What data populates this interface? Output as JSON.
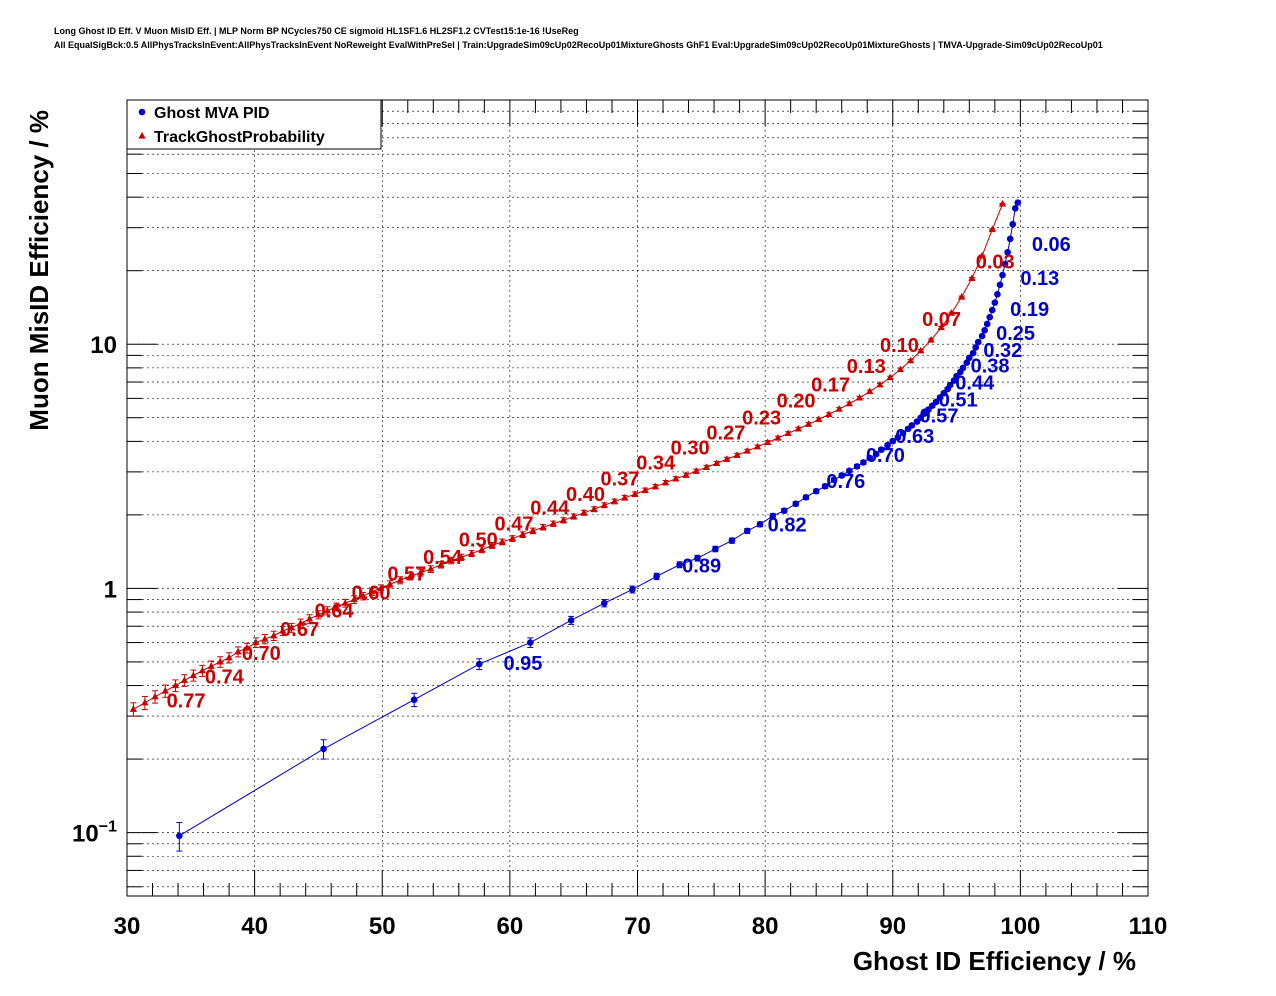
{
  "header": {
    "title_line1": "Long Ghost ID Eff. V Muon MisID Eff. | MLP Norm BP NCycles750 CE sigmoid HL1SF1.6 HL2SF1.2 CVTest15:1e-16 !UseReg",
    "title_line2": "All EqualSigBck:0.5 AllPhysTracksInEvent:AllPhysTracksInEvent NoReweight EvalWithPreSel | Train:UpgradeSim09cUp02RecoUp01MixtureGhosts GhF1 Eval:UpgradeSim09cUp02RecoUp01MixtureGhosts | TMVA-Upgrade-Sim09cUp02RecoUp01"
  },
  "colors": {
    "mva": "#0000cc",
    "tgp": "#cc0000",
    "grid": "#000000"
  },
  "chart_data": {
    "type": "scatter",
    "xlabel": "Ghost ID Efficiency / %",
    "ylabel": "Muon MisID Efficiency / %",
    "xlim": [
      30,
      110
    ],
    "ylim": [
      0.055,
      100
    ],
    "yscale": "log",
    "grid": true,
    "legend_position": "top-left",
    "x_ticks": [
      {
        "value": 30,
        "label": "30"
      },
      {
        "value": 40,
        "label": "40"
      },
      {
        "value": 50,
        "label": "50"
      },
      {
        "value": 60,
        "label": "60"
      },
      {
        "value": 70,
        "label": "70"
      },
      {
        "value": 80,
        "label": "80"
      },
      {
        "value": 90,
        "label": "90"
      },
      {
        "value": 100,
        "label": "100"
      },
      {
        "value": 110,
        "label": "110"
      }
    ],
    "y_ticks": [
      {
        "value": 0.1,
        "base": "10",
        "exp": "−1"
      },
      {
        "value": 1,
        "base": "1",
        "exp": ""
      },
      {
        "value": 10,
        "base": "10",
        "exp": ""
      }
    ],
    "series": [
      {
        "name": "Ghost MVA PID",
        "marker": "circle",
        "color": "#0000cc",
        "x": [
          34.1,
          45.4,
          52.5,
          57.6,
          61.6,
          64.8,
          67.4,
          69.6,
          71.5,
          73.3,
          74.7,
          76.1,
          77.4,
          78.6,
          79.6,
          80.6,
          81.5,
          82.4,
          83.2,
          84.0,
          84.7,
          85.4,
          86.0,
          86.6,
          87.2,
          87.7,
          88.2,
          88.7,
          89.1,
          89.6,
          90.0,
          90.4,
          90.8,
          91.2,
          91.5,
          91.9,
          92.2,
          92.5,
          92.8,
          93.1,
          93.4,
          93.7,
          94.0,
          94.3,
          94.5,
          94.8,
          95.0,
          95.3,
          95.5,
          95.8,
          96.0,
          96.3,
          96.5,
          96.7,
          97.0,
          97.2,
          97.4,
          97.6,
          97.8,
          98.0,
          98.2,
          98.4,
          98.6,
          98.8,
          99.0,
          99.2,
          99.4,
          99.6,
          99.8
        ],
        "y": [
          0.097,
          0.22,
          0.35,
          0.49,
          0.6,
          0.74,
          0.87,
          0.99,
          1.12,
          1.25,
          1.33,
          1.45,
          1.57,
          1.72,
          1.83,
          1.98,
          2.08,
          2.22,
          2.36,
          2.5,
          2.62,
          2.78,
          2.9,
          3.03,
          3.16,
          3.28,
          3.42,
          3.55,
          3.7,
          3.86,
          4.01,
          4.15,
          4.32,
          4.5,
          4.65,
          4.82,
          5.0,
          5.2,
          5.4,
          5.6,
          5.8,
          6.05,
          6.3,
          6.55,
          6.8,
          7.1,
          7.4,
          7.7,
          8.0,
          8.4,
          8.8,
          9.2,
          9.7,
          10.2,
          10.8,
          11.4,
          12.1,
          12.9,
          13.8,
          14.8,
          16.0,
          17.5,
          19.2,
          21.3,
          23.8,
          27.0,
          31.0,
          36.0,
          38.0
        ],
        "yerr": [
          0.013,
          0.02,
          0.022,
          0.025,
          0.027,
          0.028,
          0.03,
          0.032,
          0.034,
          0.035,
          0.036,
          0.037,
          0.039,
          0.04,
          0.042,
          0.043,
          0.044,
          0.046,
          0.047,
          0.049,
          0.05,
          0.052,
          0.053,
          0.054,
          0.056,
          0.057,
          0.058,
          0.059,
          0.061,
          0.062,
          0.064,
          0.065,
          0.066,
          0.068,
          0.069,
          0.071,
          0.072,
          0.074,
          0.075,
          0.077,
          0.078,
          0.08,
          0.082,
          0.084,
          0.085,
          0.087,
          0.089,
          0.091,
          0.093,
          0.095,
          0.097,
          0.1,
          0.102,
          0.105,
          0.108,
          0.111,
          0.114,
          0.118,
          0.122,
          0.126,
          0.131,
          0.137,
          0.144,
          0.151,
          0.16,
          0.17,
          0.183,
          0.197,
          0.203
        ]
      },
      {
        "name": "TrackGhostProbability",
        "marker": "triangle",
        "color": "#cc0000",
        "x": [
          30.5,
          31.4,
          32.2,
          33.0,
          33.8,
          34.5,
          35.2,
          35.9,
          36.6,
          37.3,
          38.0,
          38.7,
          39.4,
          40.1,
          40.8,
          41.5,
          42.2,
          42.9,
          43.6,
          44.3,
          45.0,
          45.7,
          46.4,
          47.1,
          47.8,
          48.5,
          49.2,
          49.9,
          50.6,
          51.4,
          52.2,
          53.0,
          53.8,
          54.6,
          55.4,
          56.2,
          57.0,
          57.8,
          58.6,
          59.4,
          60.2,
          61.0,
          61.8,
          62.6,
          63.4,
          64.2,
          65.0,
          65.8,
          66.6,
          67.4,
          68.2,
          69.0,
          69.8,
          70.6,
          71.4,
          72.2,
          73.0,
          73.8,
          74.6,
          75.4,
          76.2,
          77.0,
          77.8,
          78.6,
          79.4,
          80.2,
          81.0,
          81.8,
          82.6,
          83.4,
          84.2,
          85.0,
          85.8,
          86.6,
          87.4,
          88.2,
          89.0,
          89.8,
          90.6,
          91.4,
          92.2,
          93.0,
          93.8,
          94.6,
          95.4,
          96.2,
          97.0,
          97.8,
          98.6
        ],
        "y": [
          0.32,
          0.34,
          0.36,
          0.38,
          0.4,
          0.42,
          0.44,
          0.46,
          0.48,
          0.5,
          0.52,
          0.55,
          0.57,
          0.6,
          0.62,
          0.64,
          0.67,
          0.69,
          0.72,
          0.75,
          0.78,
          0.81,
          0.84,
          0.87,
          0.9,
          0.93,
          0.97,
          1.0,
          1.04,
          1.08,
          1.12,
          1.16,
          1.2,
          1.25,
          1.3,
          1.34,
          1.39,
          1.44,
          1.5,
          1.55,
          1.6,
          1.66,
          1.72,
          1.78,
          1.84,
          1.9,
          1.97,
          2.04,
          2.11,
          2.19,
          2.27,
          2.35,
          2.43,
          2.52,
          2.61,
          2.71,
          2.81,
          2.91,
          3.02,
          3.13,
          3.25,
          3.38,
          3.51,
          3.65,
          3.8,
          3.96,
          4.13,
          4.31,
          4.5,
          4.7,
          4.92,
          5.16,
          5.42,
          5.71,
          6.03,
          6.4,
          6.82,
          7.3,
          7.88,
          8.56,
          9.4,
          10.4,
          11.7,
          13.4,
          15.6,
          18.6,
          23.0,
          29.5,
          37.5
        ],
        "yerr": [
          0.02,
          0.021,
          0.021,
          0.022,
          0.022,
          0.023,
          0.023,
          0.024,
          0.024,
          0.025,
          0.025,
          0.026,
          0.026,
          0.027,
          0.027,
          0.028,
          0.028,
          0.029,
          0.029,
          0.03,
          0.03,
          0.031,
          0.031,
          0.032,
          0.033,
          0.033,
          0.034,
          0.034,
          0.035,
          0.036,
          0.036,
          0.037,
          0.038,
          0.038,
          0.039,
          0.04,
          0.04,
          0.041,
          0.042,
          0.042,
          0.043,
          0.044,
          0.045,
          0.045,
          0.046,
          0.047,
          0.048,
          0.048,
          0.049,
          0.05,
          0.051,
          0.052,
          0.053,
          0.054,
          0.055,
          0.056,
          0.057,
          0.058,
          0.059,
          0.06,
          0.061,
          0.063,
          0.064,
          0.065,
          0.066,
          0.068,
          0.069,
          0.071,
          0.072,
          0.074,
          0.076,
          0.078,
          0.08,
          0.082,
          0.084,
          0.087,
          0.09,
          0.093,
          0.097,
          0.101,
          0.106,
          0.112,
          0.118,
          0.127,
          0.137,
          0.15,
          0.166,
          0.188,
          0.212
        ]
      }
    ],
    "annotations": [
      {
        "series": "Ghost MVA PID",
        "text": "0.95",
        "x": 59.5,
        "y": 0.5
      },
      {
        "series": "Ghost MVA PID",
        "text": "0.89",
        "x": 73.5,
        "y": 1.25
      },
      {
        "series": "Ghost MVA PID",
        "text": "0.82",
        "x": 80.2,
        "y": 1.84
      },
      {
        "series": "Ghost MVA PID",
        "text": "0.76",
        "x": 84.8,
        "y": 2.78
      },
      {
        "series": "Ghost MVA PID",
        "text": "0.70",
        "x": 87.9,
        "y": 3.55
      },
      {
        "series": "Ghost MVA PID",
        "text": "0.63",
        "x": 90.2,
        "y": 4.24
      },
      {
        "series": "Ghost MVA PID",
        "text": "0.57",
        "x": 92.1,
        "y": 5.15
      },
      {
        "series": "Ghost MVA PID",
        "text": "0.51",
        "x": 93.6,
        "y": 6.0
      },
      {
        "series": "Ghost MVA PID",
        "text": "0.44",
        "x": 94.9,
        "y": 7.05
      },
      {
        "series": "Ghost MVA PID",
        "text": "0.38",
        "x": 96.1,
        "y": 8.25
      },
      {
        "series": "Ghost MVA PID",
        "text": "0.32",
        "x": 97.1,
        "y": 9.55
      },
      {
        "series": "Ghost MVA PID",
        "text": "0.25",
        "x": 98.1,
        "y": 11.2
      },
      {
        "series": "Ghost MVA PID",
        "text": "0.19",
        "x": 99.2,
        "y": 14.1
      },
      {
        "series": "Ghost MVA PID",
        "text": "0.13",
        "x": 100.0,
        "y": 18.8
      },
      {
        "series": "Ghost MVA PID",
        "text": "0.06",
        "x": 100.9,
        "y": 26.0
      },
      {
        "series": "TrackGhostProbability",
        "text": "0.77",
        "x": 33.1,
        "y": 0.35
      },
      {
        "series": "TrackGhostProbability",
        "text": "0.74",
        "x": 36.1,
        "y": 0.44
      },
      {
        "series": "TrackGhostProbability",
        "text": "0.70",
        "x": 39.0,
        "y": 0.55
      },
      {
        "series": "TrackGhostProbability",
        "text": "0.67",
        "x": 42.0,
        "y": 0.69
      },
      {
        "series": "TrackGhostProbability",
        "text": "0.64",
        "x": 44.7,
        "y": 0.82
      },
      {
        "series": "TrackGhostProbability",
        "text": "0.60",
        "x": 47.6,
        "y": 0.97
      },
      {
        "series": "TrackGhostProbability",
        "text": "0.57",
        "x": 50.4,
        "y": 1.16
      },
      {
        "series": "TrackGhostProbability",
        "text": "0.54",
        "x": 53.2,
        "y": 1.36
      },
      {
        "series": "TrackGhostProbability",
        "text": "0.50",
        "x": 56.0,
        "y": 1.6
      },
      {
        "series": "TrackGhostProbability",
        "text": "0.47",
        "x": 58.8,
        "y": 1.86
      },
      {
        "series": "TrackGhostProbability",
        "text": "0.44",
        "x": 61.6,
        "y": 2.16
      },
      {
        "series": "TrackGhostProbability",
        "text": "0.40",
        "x": 64.4,
        "y": 2.46
      },
      {
        "series": "TrackGhostProbability",
        "text": "0.37",
        "x": 67.1,
        "y": 2.85
      },
      {
        "series": "TrackGhostProbability",
        "text": "0.34",
        "x": 69.9,
        "y": 3.31
      },
      {
        "series": "TrackGhostProbability",
        "text": "0.30",
        "x": 72.6,
        "y": 3.81
      },
      {
        "series": "TrackGhostProbability",
        "text": "0.27",
        "x": 75.4,
        "y": 4.4
      },
      {
        "series": "TrackGhostProbability",
        "text": "0.23",
        "x": 78.2,
        "y": 5.05
      },
      {
        "series": "TrackGhostProbability",
        "text": "0.20",
        "x": 80.9,
        "y": 5.95
      },
      {
        "series": "TrackGhostProbability",
        "text": "0.17",
        "x": 83.6,
        "y": 6.9
      },
      {
        "series": "TrackGhostProbability",
        "text": "0.13",
        "x": 86.4,
        "y": 8.2
      },
      {
        "series": "TrackGhostProbability",
        "text": "0.10",
        "x": 89.0,
        "y": 10.0
      },
      {
        "series": "TrackGhostProbability",
        "text": "0.07",
        "x": 92.3,
        "y": 12.8
      },
      {
        "series": "TrackGhostProbability",
        "text": "0.03",
        "x": 96.5,
        "y": 22.0
      }
    ]
  }
}
